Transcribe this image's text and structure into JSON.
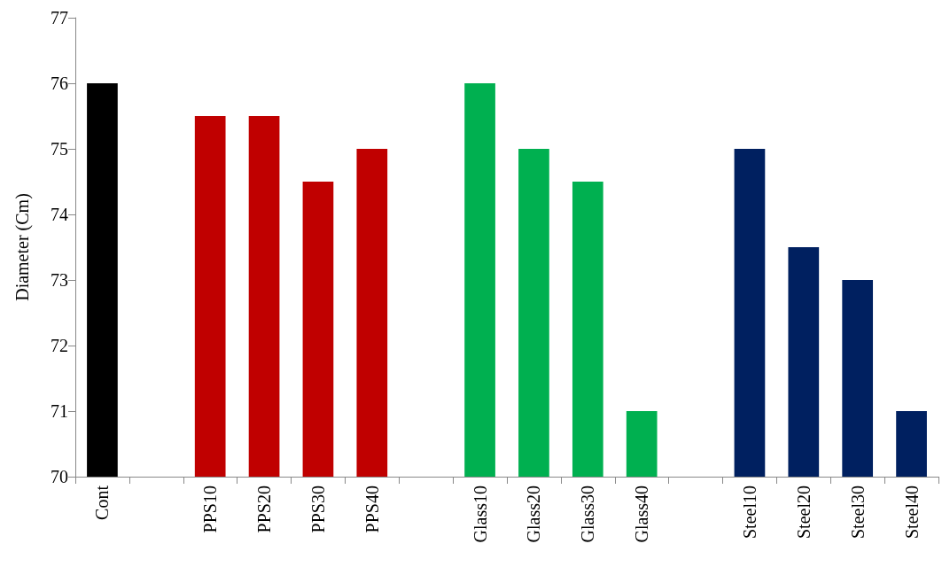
{
  "chart_data": {
    "type": "bar",
    "ylabel": "Diameter (Cm)",
    "categories": [
      "Cont",
      null,
      "PPS10",
      "PPS20",
      "PPS30",
      "PPS40",
      null,
      "Glass10",
      "Glass20",
      "Glass30",
      "Glass40",
      null,
      "Steel10",
      "Steel20",
      "Steel30",
      "Steel40"
    ],
    "values": [
      76,
      null,
      75.5,
      75.5,
      74.5,
      75,
      null,
      76,
      75,
      74.5,
      71,
      null,
      75,
      73.5,
      73,
      71
    ],
    "colors": [
      "#000000",
      null,
      "#c00000",
      "#c00000",
      "#c00000",
      "#c00000",
      null,
      "#00b050",
      "#00b050",
      "#00b050",
      "#00b050",
      null,
      "#002060",
      "#002060",
      "#002060",
      "#002060"
    ],
    "ylim": [
      70,
      77
    ],
    "yticks": [
      70,
      71,
      72,
      73,
      74,
      75,
      76,
      77
    ],
    "grid": false
  }
}
